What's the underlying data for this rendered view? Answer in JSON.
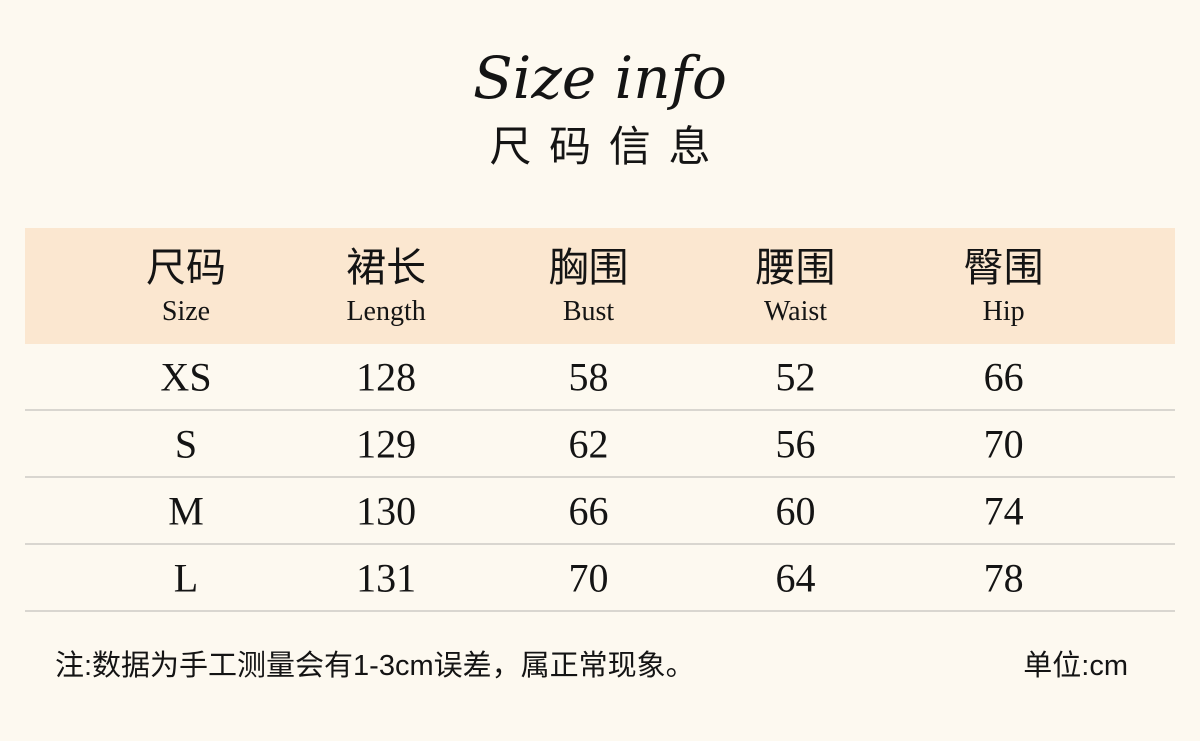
{
  "page": {
    "title_en": "Size info",
    "title_zh": "尺码信息",
    "note": "注:数据为手工测量会有1-3cm误差，属正常现象。",
    "unit_label": "单位:cm"
  },
  "table": {
    "columns": [
      {
        "zh": "尺码",
        "en": "Size"
      },
      {
        "zh": "裙长",
        "en": "Length"
      },
      {
        "zh": "胸围",
        "en": "Bust"
      },
      {
        "zh": "腰围",
        "en": "Waist"
      },
      {
        "zh": "臀围",
        "en": "Hip"
      }
    ],
    "rows": [
      [
        "XS",
        "128",
        "58",
        "52",
        "66"
      ],
      [
        "S",
        "129",
        "62",
        "56",
        "70"
      ],
      [
        "M",
        "130",
        "66",
        "60",
        "74"
      ],
      [
        "L",
        "131",
        "70",
        "64",
        "78"
      ]
    ]
  },
  "colors": {
    "background": "#fdf9f0",
    "header_band": "#fbe7d0",
    "text": "#141414",
    "divider": "#d9d6d0"
  }
}
